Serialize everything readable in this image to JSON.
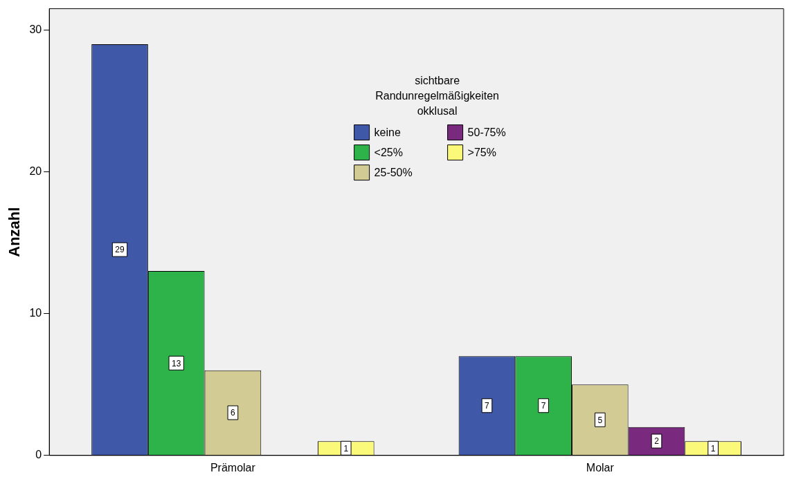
{
  "chart_data": {
    "type": "bar",
    "ylabel": "Anzahl",
    "legend_title": "sichtbare Randunregelmäßigkeiten okklusal",
    "categories": [
      "Prämolar",
      "Molar"
    ],
    "series": [
      {
        "name": "keine",
        "color": "#3f58a8",
        "values": [
          29,
          7
        ],
        "value_labels": [
          "29",
          "7"
        ]
      },
      {
        "name": "<25%",
        "color": "#2db34a",
        "values": [
          13,
          7
        ],
        "value_labels": [
          "13",
          "7"
        ]
      },
      {
        "name": "25-50%",
        "color": "#d2cb94",
        "values": [
          6,
          5
        ],
        "value_labels": [
          "6",
          "5"
        ]
      },
      {
        "name": "50-75%",
        "color": "#7a2a7e",
        "values": [
          0,
          2
        ],
        "value_labels": [
          null,
          "2"
        ]
      },
      {
        "name": ">75%",
        "color": "#fbf97a",
        "values": [
          1,
          1
        ],
        "value_labels": [
          "1",
          "1"
        ]
      }
    ],
    "ylim": [
      0,
      31.5
    ],
    "yticks": [
      0,
      10,
      20,
      30
    ],
    "grid": false,
    "legend": "top"
  }
}
